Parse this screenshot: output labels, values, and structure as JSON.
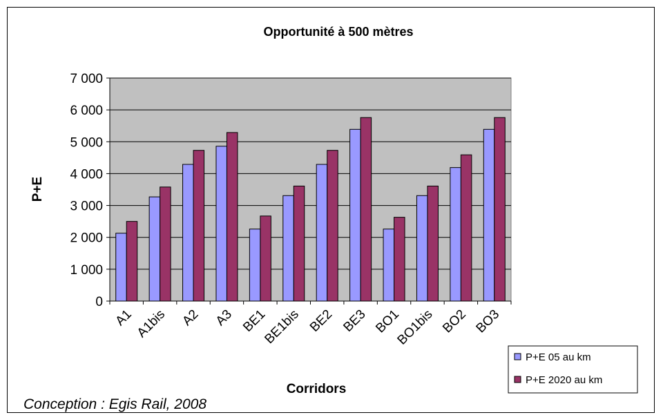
{
  "chart_data": {
    "type": "bar",
    "title": "Opportunité à 500 mètres",
    "xlabel": "Corridors",
    "ylabel": "P+E",
    "ylim": [
      0,
      7000
    ],
    "yticks": [
      0,
      1000,
      2000,
      3000,
      4000,
      5000,
      6000,
      7000
    ],
    "ytick_labels": [
      "0",
      "1 000",
      "2 000",
      "3 000",
      "4 000",
      "5 000",
      "6 000",
      "7 000"
    ],
    "grid": true,
    "legend_position": "bottom-right",
    "categories": [
      "A1",
      "A1bis",
      "A2",
      "A3",
      "BE1",
      "BE1bis",
      "BE2",
      "BE3",
      "BO1",
      "BO1bis",
      "BO2",
      "BO3"
    ],
    "series": [
      {
        "name": "P+E 05 au km",
        "color": "#9999FF",
        "values": [
          2130,
          3270,
          4290,
          4860,
          2260,
          3310,
          4290,
          5390,
          2260,
          3310,
          4190,
          5390
        ]
      },
      {
        "name": "P+E 2020 au km",
        "color": "#993366",
        "values": [
          2500,
          3580,
          4730,
          5290,
          2670,
          3610,
          4730,
          5760,
          2630,
          3610,
          4590,
          5760
        ]
      }
    ]
  },
  "credit": "Conception : Egis Rail, 2008",
  "colors": {
    "plot_background": "#C0C0C0",
    "gridline": "#000000"
  }
}
